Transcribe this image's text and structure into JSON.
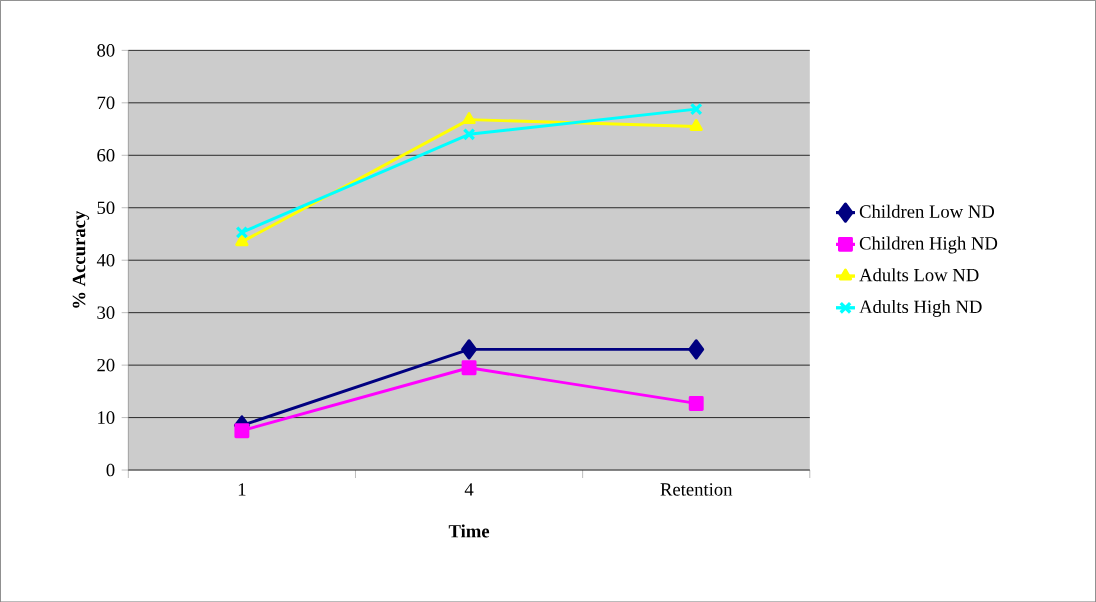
{
  "chart_data": {
    "type": "line",
    "xlabel": "Time",
    "ylabel": "% Accuracy",
    "categories": [
      "1",
      "4",
      "Retention"
    ],
    "series": [
      {
        "name": "Children Low ND",
        "color": "#000080",
        "marker": "diamond",
        "values": [
          8.5,
          23,
          23
        ]
      },
      {
        "name": "Children High ND",
        "color": "#ff00ff",
        "marker": "square",
        "values": [
          7.5,
          19.5,
          12.7
        ]
      },
      {
        "name": "Adults Low ND",
        "color": "#ffff00",
        "marker": "triangle",
        "values": [
          43.5,
          66.8,
          65.5
        ]
      },
      {
        "name": "Adults High ND",
        "color": "#00ffff",
        "marker": "cross",
        "values": [
          45.3,
          64,
          68.8
        ]
      }
    ],
    "ylim": [
      0,
      80
    ],
    "yticks": [
      0,
      10,
      20,
      30,
      40,
      50,
      60,
      70,
      80
    ],
    "grid": "y",
    "legend": "right",
    "line_style": "solid"
  }
}
